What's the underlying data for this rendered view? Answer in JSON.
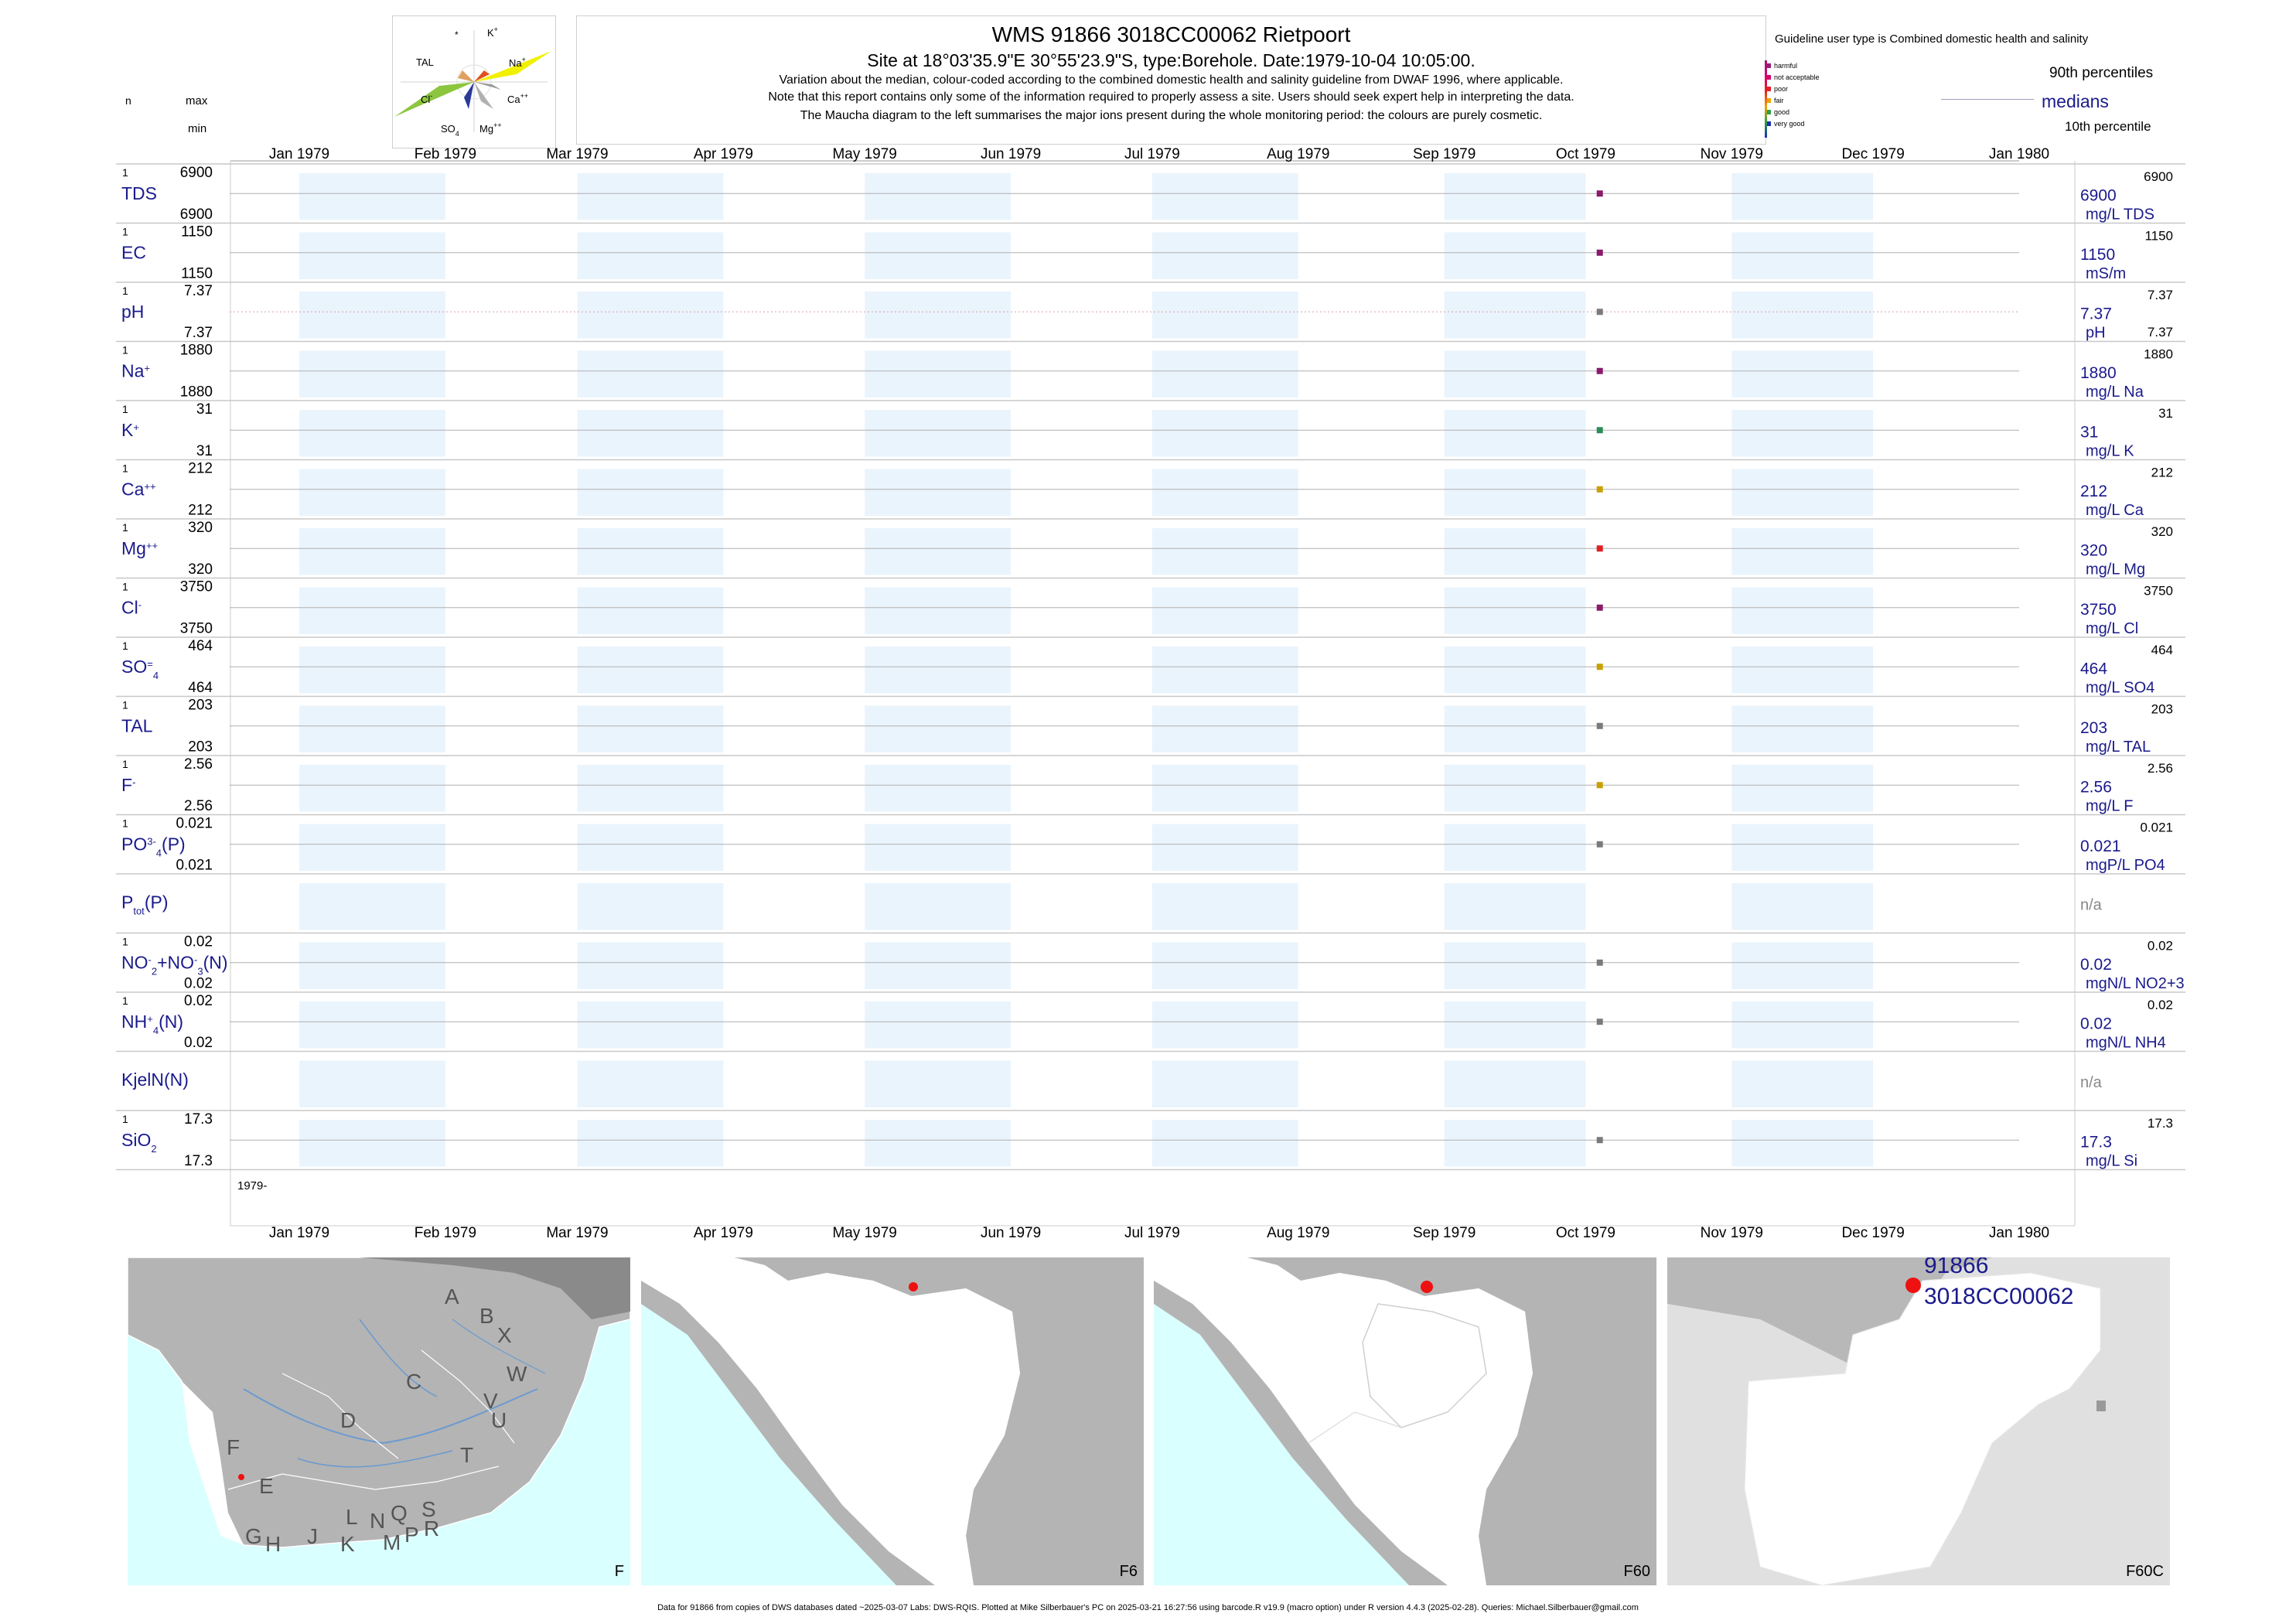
{
  "header": {
    "title": "WMS 91866 3018CC00062 Rietpoort",
    "subtitle": "Site at 18°03'35.9\"E 30°55'23.9\"S, type:Borehole. Date:1979-10-04 10:05:00.",
    "note1": "Variation about the median,  colour-coded according to the combined domestic health and salinity guideline from DWAF 1996, where applicable.",
    "note2": "Note that this report contains only some of the information required to properly assess a site. Users should seek expert help in interpreting the data.",
    "note3": "The Maucha diagram to the left summarises the major ions present during the whole monitoring period: the colours are purely cosmetic."
  },
  "left_header": {
    "n": "n",
    "max": "max",
    "min": "min"
  },
  "guideline": {
    "title": "Guideline user type is Combined domestic health and salinity",
    "levels": [
      {
        "label": "harmful",
        "color": "#9b1a7a"
      },
      {
        "label": "not acceptable",
        "color": "#d6006f"
      },
      {
        "label": "poor",
        "color": "#e62020"
      },
      {
        "label": "fair",
        "color": "#f0a500"
      },
      {
        "label": "good",
        "color": "#2ea043"
      },
      {
        "label": "very good",
        "color": "#1a2fb0"
      }
    ],
    "p90": "90th percentiles",
    "medians": "medians",
    "p10": "10th percentile"
  },
  "maucha": {
    "labels": {
      "star": "*",
      "k": "K",
      "tal": "TAL",
      "na": "Na",
      "cl": "Cl",
      "ca": "Ca",
      "so4": "SO",
      "mg": "Mg"
    }
  },
  "months": [
    "Jan 1979",
    "Feb 1979",
    "Mar 1979",
    "Apr 1979",
    "May 1979",
    "Jun 1979",
    "Jul 1979",
    "Aug 1979",
    "Sep 1979",
    "Oct 1979",
    "Nov 1979",
    "Dec 1979",
    "Jan 1980"
  ],
  "year_label": "1979-",
  "chart_data": {
    "type": "scatter",
    "x_range": [
      "1979-01-01",
      "1980-01-01"
    ],
    "sample_date": "1979-10-04",
    "series": [
      {
        "key": "TDS",
        "n": "1",
        "max": "6900",
        "min": "6900",
        "value": 6900,
        "right_value": "6900",
        "unit": "mg/L TDS",
        "p90": "6900",
        "p10": "",
        "color": "#8b1a6b"
      },
      {
        "key": "EC",
        "n": "1",
        "max": "1150",
        "min": "1150",
        "value": 1150,
        "right_value": "1150",
        "unit": "mS/m",
        "p90": "1150",
        "p10": "",
        "color": "#8b1a6b"
      },
      {
        "key": "pH",
        "n": "1",
        "max": "7.37",
        "min": "7.37",
        "value": 7.37,
        "right_value": "7.37",
        "unit": "pH",
        "p90": "7.37",
        "p10": "7.37",
        "color": "#7a7a7a"
      },
      {
        "key": "Na",
        "n": "1",
        "max": "1880",
        "min": "1880",
        "value": 1880,
        "right_value": "1880",
        "unit": "mg/L Na",
        "p90": "1880",
        "p10": "",
        "color": "#8b1a6b"
      },
      {
        "key": "K",
        "n": "1",
        "max": "31",
        "min": "31",
        "value": 31,
        "right_value": "31",
        "unit": "mg/L K",
        "p90": "31",
        "p10": "",
        "color": "#2e8b57"
      },
      {
        "key": "Ca",
        "n": "1",
        "max": "212",
        "min": "212",
        "value": 212,
        "right_value": "212",
        "unit": "mg/L Ca",
        "p90": "212",
        "p10": "",
        "color": "#c8a000"
      },
      {
        "key": "Mg",
        "n": "1",
        "max": "320",
        "min": "320",
        "value": 320,
        "right_value": "320",
        "unit": "mg/L Mg",
        "p90": "320",
        "p10": "",
        "color": "#e02020"
      },
      {
        "key": "Cl",
        "n": "1",
        "max": "3750",
        "min": "3750",
        "value": 3750,
        "right_value": "3750",
        "unit": "mg/L Cl",
        "p90": "3750",
        "p10": "",
        "color": "#8b1a6b"
      },
      {
        "key": "SO4",
        "n": "1",
        "max": "464",
        "min": "464",
        "value": 464,
        "right_value": "464",
        "unit": "mg/L SO4",
        "p90": "464",
        "p10": "",
        "color": "#c8a000"
      },
      {
        "key": "TAL",
        "n": "1",
        "max": "203",
        "min": "203",
        "value": 203,
        "right_value": "203",
        "unit": "mg/L TAL",
        "p90": "203",
        "p10": "",
        "color": "#7a7a7a"
      },
      {
        "key": "F",
        "n": "1",
        "max": "2.56",
        "min": "2.56",
        "value": 2.56,
        "right_value": "2.56",
        "unit": "mg/L F",
        "p90": "2.56",
        "p10": "",
        "color": "#c8a000"
      },
      {
        "key": "PO4",
        "n": "1",
        "max": "0.021",
        "min": "0.021",
        "value": 0.021,
        "right_value": "0.021",
        "unit": "mgP/L PO4",
        "p90": "0.021",
        "p10": "",
        "color": "#7a7a7a"
      },
      {
        "key": "Ptot",
        "n": "",
        "max": "",
        "min": "",
        "value": null,
        "right_value": "n/a",
        "unit": "",
        "p90": "",
        "p10": "",
        "color": ""
      },
      {
        "key": "NO3",
        "n": "1",
        "max": "0.02",
        "min": "0.02",
        "value": 0.02,
        "right_value": "0.02",
        "unit": "mgN/L NO2+3",
        "p90": "0.02",
        "p10": "",
        "color": "#7a7a7a"
      },
      {
        "key": "NH4",
        "n": "1",
        "max": "0.02",
        "min": "0.02",
        "value": 0.02,
        "right_value": "0.02",
        "unit": "mgN/L NH4",
        "p90": "0.02",
        "p10": "",
        "color": "#7a7a7a"
      },
      {
        "key": "KjelN",
        "n": "",
        "max": "",
        "min": "",
        "value": null,
        "right_value": "n/a",
        "unit": "",
        "p90": "",
        "p10": "",
        "color": ""
      },
      {
        "key": "SiO2",
        "n": "1",
        "max": "17.3",
        "min": "17.3",
        "value": 17.3,
        "right_value": "17.3",
        "unit": "mg/L Si",
        "p90": "17.3",
        "p10": "",
        "color": "#7a7a7a"
      }
    ]
  },
  "maps": [
    {
      "label": "F",
      "regions": [
        "A",
        "B",
        "X",
        "C",
        "W",
        "V",
        "U",
        "D",
        "T",
        "F",
        "E",
        "L",
        "N",
        "Q",
        "S",
        "R",
        "J",
        "K",
        "M",
        "P",
        "G",
        "H"
      ]
    },
    {
      "label": "F6"
    },
    {
      "label": "F60"
    },
    {
      "label": "F60C",
      "site_line1": "91866",
      "site_line2": "3018CC00062"
    }
  ],
  "footer": "Data for 91866 from copies of DWS databases dated ~2025-03-07 Labs: DWS-RQIS. Plotted at Mike Silberbauer's PC on 2025-03-21 16:27:56 using barcode.R v19.9 (macro option) under R version 4.4.3 (2025-02-28). Queries: Michael.Silberbauer@gmail.com",
  "colors": {
    "band": "#eaf4fd",
    "label_blue": "#1a1a8c",
    "grid": "#c8c8c8",
    "sea": "#d9ffff",
    "land_grey": "#b4b4b4",
    "catchment": "#ffffff",
    "site_red": "#ee1111"
  }
}
